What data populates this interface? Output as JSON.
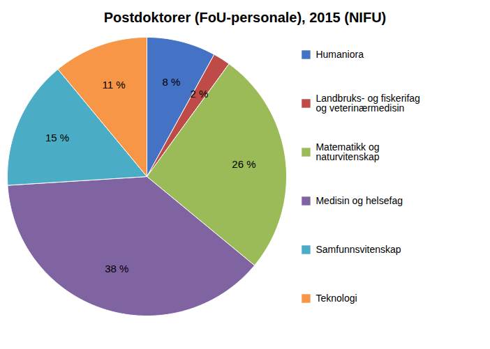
{
  "chart_data": {
    "type": "pie",
    "title": "Postdoktorer (FoU-personale), 2015 (NIFU)",
    "categories": [
      "Humaniora",
      "Landbruks- og fiskerifag\nog veterinærmedisin",
      "Matematikk og\nnaturvitenskap",
      "Medisin og helsefag",
      "Samfunnsvitenskap",
      "Teknologi"
    ],
    "values": [
      8,
      2,
      26,
      38,
      15,
      11
    ],
    "value_labels": [
      "8 %",
      "2 %",
      "26 %",
      "38 %",
      "15 %",
      "11 %"
    ],
    "colors": [
      "#4472C4",
      "#BE4B48",
      "#9BBB59",
      "#8064A2",
      "#4BACC6",
      "#F79646"
    ],
    "data_labels": true,
    "legend": "right"
  }
}
